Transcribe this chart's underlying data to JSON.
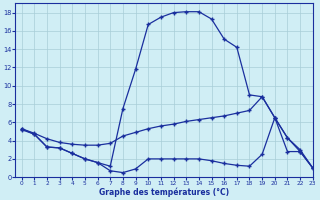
{
  "bg_color": "#d0eef5",
  "line_color": "#1a2f9e",
  "grid_color": "#a8cdd8",
  "xlabel": "Graphe des températures (°C)",
  "xlim": [
    -0.5,
    23
  ],
  "ylim": [
    0,
    19
  ],
  "xticks": [
    0,
    1,
    2,
    3,
    4,
    5,
    6,
    7,
    8,
    9,
    10,
    11,
    12,
    13,
    14,
    15,
    16,
    17,
    18,
    19,
    20,
    21,
    22,
    23
  ],
  "yticks": [
    0,
    2,
    4,
    6,
    8,
    10,
    12,
    14,
    16,
    18
  ],
  "line_top_x": [
    0,
    1,
    2,
    3,
    4,
    5,
    6,
    7,
    8,
    9,
    10,
    11,
    12,
    13,
    14,
    15,
    16,
    17,
    18,
    19,
    20,
    21,
    22,
    23
  ],
  "line_top_y": [
    5.3,
    4.7,
    3.3,
    3.2,
    2.6,
    2.0,
    1.6,
    1.2,
    7.5,
    11.8,
    16.7,
    17.5,
    18.0,
    18.1,
    18.1,
    17.3,
    15.1,
    14.2,
    9.0,
    8.8,
    6.5,
    4.3,
    2.8,
    1.0
  ],
  "line_mid_x": [
    0,
    1,
    2,
    3,
    4,
    5,
    6,
    7,
    8,
    9,
    10,
    11,
    12,
    13,
    14,
    15,
    16,
    17,
    18,
    19,
    20,
    21,
    22,
    23
  ],
  "line_mid_y": [
    5.3,
    4.8,
    4.2,
    3.8,
    3.6,
    3.5,
    3.5,
    3.7,
    4.5,
    4.9,
    5.3,
    5.6,
    5.8,
    6.1,
    6.3,
    6.5,
    6.7,
    7.0,
    7.3,
    8.8,
    6.5,
    4.3,
    3.0,
    1.0
  ],
  "line_bot_x": [
    0,
    1,
    2,
    3,
    4,
    5,
    6,
    7,
    8,
    9,
    10,
    11,
    12,
    13,
    14,
    15,
    16,
    17,
    18,
    19,
    20,
    21,
    22,
    23
  ],
  "line_bot_y": [
    5.2,
    4.7,
    3.3,
    3.2,
    2.6,
    2.0,
    1.6,
    0.7,
    0.5,
    0.9,
    2.0,
    2.0,
    2.0,
    2.0,
    2.0,
    1.8,
    1.5,
    1.3,
    1.2,
    2.5,
    6.5,
    2.8,
    2.8,
    1.0
  ]
}
